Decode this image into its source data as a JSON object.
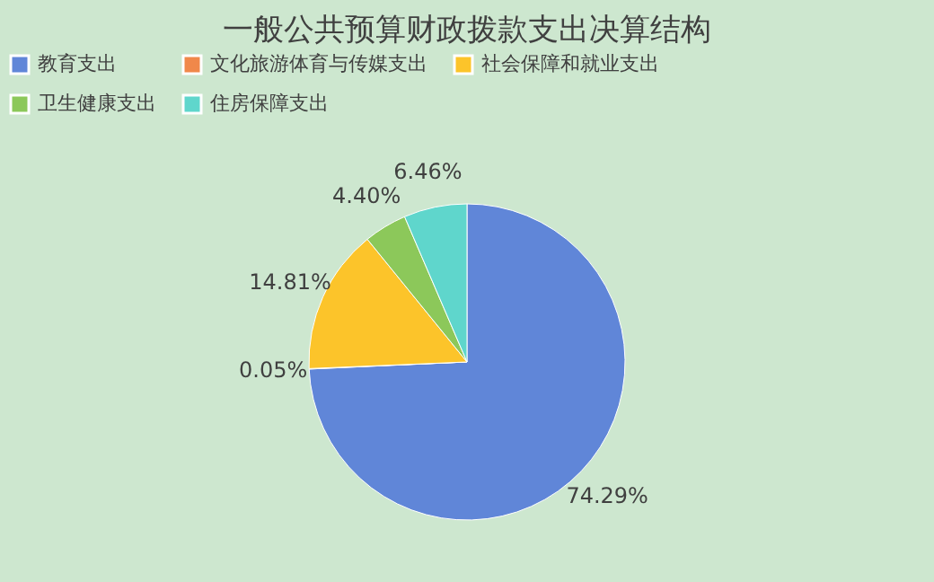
{
  "chart_data": {
    "type": "pie",
    "title": "一般公共预算财政拨款支出决算结构",
    "categories": [
      "教育支出",
      "文化旅游体育与传媒支出",
      "社会保障和就业支出",
      "卫生健康支出",
      "住房保障支出"
    ],
    "values": [
      74.29,
      0.05,
      14.81,
      4.4,
      6.46
    ],
    "value_labels": [
      "74.29%",
      "0.05%",
      "14.81%",
      "4.40%",
      "6.46%"
    ],
    "colors": [
      "#6086d8",
      "#f0884a",
      "#fcc42a",
      "#8cc85a",
      "#5fd6cc"
    ],
    "legend": "top"
  }
}
